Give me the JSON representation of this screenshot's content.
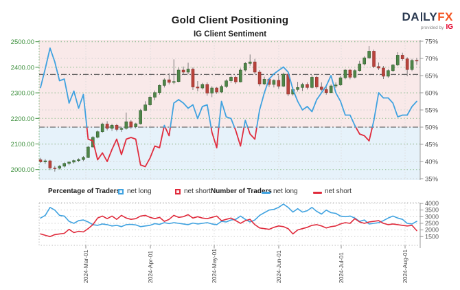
{
  "header": {
    "title": "Gold Client Positioning",
    "subtitle": "IG Client Sentiment",
    "logo": {
      "text_da": "DA",
      "text_ly": "LY",
      "text_fx": "FX",
      "provided_by": "provided by",
      "ig": "IG"
    }
  },
  "legend": {
    "pct_label": "Percentage of Traders",
    "count_label": "Number of Traders",
    "net_long": "net long",
    "net_short": "net short"
  },
  "colors": {
    "blue": "#3fa2e0",
    "red": "#e02b3c",
    "candle_up_fill": "#4f8549",
    "candle_up_stroke": "#33602e",
    "candle_down_fill": "#b8433c",
    "candle_down_stroke": "#8f2f2a",
    "wick": "#6e6e6e",
    "price_axis_green": "#3c8f3c",
    "grid_green": "#8fbf8f",
    "grid_gray": "#cfcfcf",
    "axis_gray": "#555555",
    "axis_line": "#999999",
    "ref_line": "#4a4a4a",
    "bg_pink": "#f9e9e9",
    "bg_blue": "#e6f2fa",
    "x_label": "#444444"
  },
  "chart_data": [
    {
      "type": "candlestick+line",
      "title": "Gold price candles with IG client sentiment (net-long %) overlay",
      "price_axis": {
        "tick_values": [
          2500,
          2400,
          2300,
          2200,
          2100,
          2000
        ],
        "tick_labels": [
          "2500.00",
          "2400.00",
          "2300.00",
          "2200.00",
          "2100.00",
          "2000.00"
        ]
      },
      "pct_axis": {
        "tick_values": [
          75,
          70,
          65,
          60,
          55,
          50,
          45,
          40,
          35
        ],
        "tick_labels": [
          "75%",
          "70%",
          "65%",
          "60%",
          "55%",
          "50%",
          "45%",
          "40%",
          "35%"
        ],
        "ylim": [
          35,
          75
        ]
      },
      "x_axis": {
        "labels": [
          "2024-Mar-01",
          "2024-Apr-01",
          "2024-May-01",
          "2024-Jun-01",
          "2024-Jul-01",
          "2024-Aug-01"
        ]
      },
      "reference_lines": [
        {
          "axis": "pct",
          "value": 50,
          "style": "dash-dot"
        },
        {
          "axis": "price",
          "value": 2372,
          "style": "dash-dot"
        }
      ],
      "background_zones": [
        {
          "above_pct": 50,
          "color_key": "bg_pink"
        },
        {
          "below_pct": 50,
          "color_key": "bg_blue"
        }
      ],
      "candles_ohlc": [
        [
          2038,
          2046,
          2026,
          2030
        ],
        [
          2030,
          2041,
          2022,
          2034
        ],
        [
          2034,
          2038,
          1998,
          2006
        ],
        [
          2006,
          2014,
          1992,
          2005
        ],
        [
          2005,
          2017,
          2000,
          2013
        ],
        [
          2013,
          2028,
          2008,
          2024
        ],
        [
          2024,
          2033,
          2017,
          2029
        ],
        [
          2029,
          2039,
          2023,
          2035
        ],
        [
          2035,
          2044,
          2029,
          2039
        ],
        [
          2039,
          2053,
          2033,
          2047
        ],
        [
          2047,
          2092,
          2045,
          2088
        ],
        [
          2088,
          2131,
          2086,
          2126
        ],
        [
          2126,
          2153,
          2122,
          2148
        ],
        [
          2148,
          2183,
          2144,
          2178
        ],
        [
          2178,
          2189,
          2153,
          2161
        ],
        [
          2161,
          2179,
          2151,
          2173
        ],
        [
          2173,
          2179,
          2149,
          2157
        ],
        [
          2157,
          2166,
          2147,
          2161
        ],
        [
          2161,
          2223,
          2156,
          2187
        ],
        [
          2187,
          2193,
          2159,
          2167
        ],
        [
          2167,
          2183,
          2161,
          2179
        ],
        [
          2179,
          2237,
          2176,
          2231
        ],
        [
          2231,
          2267,
          2229,
          2253
        ],
        [
          2253,
          2289,
          2249,
          2283
        ],
        [
          2283,
          2309,
          2271,
          2301
        ],
        [
          2301,
          2333,
          2293,
          2329
        ],
        [
          2329,
          2357,
          2321,
          2351
        ],
        [
          2351,
          2377,
          2333,
          2341
        ],
        [
          2341,
          2431,
          2334,
          2344
        ],
        [
          2344,
          2399,
          2341,
          2389
        ],
        [
          2389,
          2403,
          2371,
          2381
        ],
        [
          2381,
          2418,
          2373,
          2393
        ],
        [
          2393,
          2399,
          2311,
          2323
        ],
        [
          2323,
          2346,
          2306,
          2319
        ],
        [
          2319,
          2339,
          2313,
          2333
        ],
        [
          2333,
          2341,
          2289,
          2299
        ],
        [
          2299,
          2326,
          2283,
          2319
        ],
        [
          2319,
          2323,
          2296,
          2303
        ],
        [
          2303,
          2331,
          2299,
          2325
        ],
        [
          2325,
          2353,
          2319,
          2347
        ],
        [
          2347,
          2366,
          2339,
          2361
        ],
        [
          2361,
          2367,
          2335,
          2343
        ],
        [
          2343,
          2396,
          2341,
          2389
        ],
        [
          2389,
          2421,
          2383,
          2415
        ],
        [
          2415,
          2450,
          2406,
          2421
        ],
        [
          2421,
          2433,
          2373,
          2381
        ],
        [
          2381,
          2389,
          2326,
          2335
        ],
        [
          2335,
          2363,
          2331,
          2353
        ],
        [
          2353,
          2359,
          2323,
          2333
        ],
        [
          2333,
          2353,
          2321,
          2349
        ],
        [
          2349,
          2369,
          2316,
          2326
        ],
        [
          2326,
          2379,
          2323,
          2373
        ],
        [
          2373,
          2376,
          2287,
          2295
        ],
        [
          2295,
          2323,
          2289,
          2313
        ],
        [
          2313,
          2343,
          2305,
          2321
        ],
        [
          2321,
          2339,
          2307,
          2333
        ],
        [
          2333,
          2341,
          2313,
          2321
        ],
        [
          2321,
          2369,
          2317,
          2361
        ],
        [
          2361,
          2367,
          2317,
          2323
        ],
        [
          2323,
          2341,
          2307,
          2313
        ],
        [
          2313,
          2329,
          2293,
          2301
        ],
        [
          2301,
          2333,
          2299,
          2327
        ],
        [
          2327,
          2341,
          2319,
          2331
        ],
        [
          2331,
          2366,
          2327,
          2359
        ],
        [
          2359,
          2393,
          2353,
          2389
        ],
        [
          2389,
          2393,
          2353,
          2361
        ],
        [
          2361,
          2393,
          2356,
          2387
        ],
        [
          2387,
          2425,
          2383,
          2413
        ],
        [
          2413,
          2443,
          2407,
          2437
        ],
        [
          2437,
          2483,
          2433,
          2463
        ],
        [
          2463,
          2469,
          2397,
          2403
        ],
        [
          2403,
          2419,
          2389,
          2397
        ],
        [
          2397,
          2405,
          2354,
          2365
        ],
        [
          2365,
          2393,
          2359,
          2387
        ],
        [
          2387,
          2413,
          2381,
          2409
        ],
        [
          2409,
          2459,
          2405,
          2447
        ],
        [
          2447,
          2457,
          2425,
          2433
        ],
        [
          2433,
          2439,
          2365,
          2391
        ],
        [
          2391,
          2433,
          2385,
          2427
        ],
        [
          2427,
          2437,
          2409,
          2425
        ]
      ],
      "sentiment_net_long_pct": [
        61.5,
        67,
        73,
        69,
        63.5,
        64,
        57,
        60.5,
        55.5,
        59.5,
        46.5,
        46,
        40.5,
        42.5,
        40,
        43.5,
        46.5,
        42,
        46.5,
        47,
        46.5,
        39,
        38.5,
        41,
        44.5,
        44,
        50.5,
        47.5,
        57,
        58,
        57,
        55.5,
        56.5,
        52.5,
        56,
        56.5,
        48.5,
        44,
        57.5,
        53,
        52.5,
        49,
        44.5,
        52,
        48,
        46.5,
        55,
        60,
        64,
        65.5,
        66.5,
        67.5,
        66,
        61,
        57.5,
        55,
        56,
        54.5,
        58,
        60,
        62,
        65,
        60,
        57.5,
        53.5,
        53.5,
        50.5,
        48,
        47.5,
        46,
        52,
        60,
        58.5,
        58.5,
        57,
        53,
        53.5,
        53.5,
        56,
        57.5
      ]
    },
    {
      "type": "line",
      "title": "Number of traders",
      "y_axis": {
        "tick_values": [
          4000,
          3500,
          3000,
          2500,
          2000,
          1500
        ],
        "tick_labels": [
          "4000",
          "3500",
          "3000",
          "2500",
          "2000",
          "1500"
        ],
        "ylim": [
          1500,
          4000
        ]
      },
      "x_axis": {
        "labels": [
          "2024-Mar-01",
          "2024-Apr-01",
          "2024-May-01",
          "2024-Jun-01",
          "2024-Jul-01",
          "2024-Aug-01"
        ]
      },
      "series": [
        {
          "name": "net long",
          "color_key": "blue",
          "values": [
            2900,
            3100,
            3700,
            3500,
            3100,
            3050,
            2650,
            2500,
            2700,
            2750,
            2600,
            2400,
            2350,
            2450,
            2400,
            2300,
            2350,
            2250,
            2400,
            2420,
            2380,
            2250,
            2300,
            2350,
            2480,
            2420,
            2550,
            2480,
            2550,
            2500,
            2450,
            2400,
            2520,
            2450,
            2500,
            2550,
            2450,
            2400,
            2650,
            2600,
            2750,
            2800,
            3050,
            2800,
            2600,
            2750,
            3100,
            3300,
            3500,
            3550,
            3700,
            3950,
            3700,
            3350,
            3600,
            3350,
            3450,
            3700,
            3400,
            3200,
            3500,
            3300,
            3250,
            3050,
            3000,
            3050,
            2900,
            2650,
            2750,
            2450,
            2500,
            2550,
            2700,
            2900,
            3050,
            2900,
            2800,
            2500,
            2450,
            2650
          ]
        },
        {
          "name": "net short",
          "color_key": "red",
          "values": [
            1700,
            1600,
            1500,
            1650,
            1700,
            1750,
            2050,
            1800,
            1900,
            1850,
            2100,
            2400,
            2900,
            3050,
            2850,
            3050,
            2800,
            3100,
            2900,
            2800,
            2850,
            3050,
            3100,
            2950,
            2850,
            2950,
            2650,
            2800,
            3100,
            2950,
            3000,
            3150,
            2900,
            3000,
            2900,
            2850,
            2950,
            3050,
            2700,
            2800,
            2900,
            2700,
            2500,
            2700,
            2800,
            2400,
            2150,
            2100,
            2050,
            2200,
            2300,
            2250,
            2100,
            1700,
            2000,
            2100,
            2200,
            2350,
            2400,
            2300,
            2150,
            2250,
            2300,
            2450,
            2550,
            2500,
            2850,
            2600,
            2500,
            2600,
            2650,
            2700,
            2500,
            2400,
            2450,
            2400,
            2350,
            2300,
            2350,
            1950
          ]
        }
      ]
    }
  ]
}
